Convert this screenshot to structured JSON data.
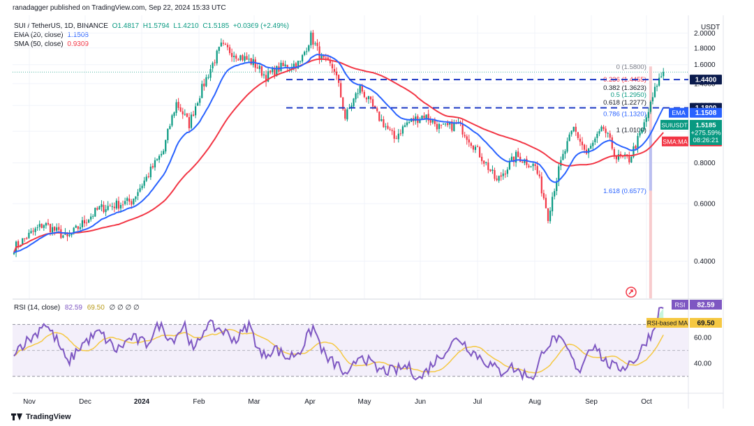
{
  "publisher_line": "ranadagger published on TradingView.com, Sep 22, 2024 15:33 UTC",
  "symbol_line": {
    "name": "SUI / TetherUS, 1D, BINANCE",
    "open": "O1.4817",
    "high": "H1.5794",
    "low": "L1.4210",
    "close": "C1.5185",
    "change": "+0.0369 (+2.49%)"
  },
  "ema_legend": {
    "label": "EMA (20, close)",
    "value": "1.1508"
  },
  "sma_legend": {
    "label": "SMA (50, close)",
    "value": "0.9309"
  },
  "rsi_legend": {
    "label": "RSI (14, close)",
    "value": "82.59",
    "ma_value": "69.50",
    "extras": "∅ ∅ ∅ ∅"
  },
  "currency": "USDT",
  "footer": "TradingView",
  "colors": {
    "up": "#089981",
    "down": "#f23645",
    "ema": "#2962ff",
    "sma": "#f23645",
    "rsi": "#7e57c2",
    "rsi_ma": "#f5c842",
    "levels": "#1a37c4"
  },
  "chart_data": {
    "type": "candlestick",
    "price_axis": {
      "ticks": [
        "2.0000",
        "1.8000",
        "1.6000",
        "1.4000",
        "1.2000",
        "1.0000",
        "0.8000",
        "0.6000",
        "0.4000"
      ],
      "range": [
        0.3,
        2.2
      ]
    },
    "time_axis": {
      "labels": [
        "Nov",
        "Dec",
        "2024",
        "Feb",
        "Mar",
        "Apr",
        "May",
        "Jun",
        "Jul",
        "Aug",
        "Sep",
        "Oct"
      ]
    },
    "keypoints": [
      {
        "d": 0,
        "p": 0.44
      },
      {
        "d": 14,
        "p": 0.52
      },
      {
        "d": 25,
        "p": 0.47
      },
      {
        "d": 40,
        "p": 0.58
      },
      {
        "d": 55,
        "p": 0.61
      },
      {
        "d": 62,
        "p": 0.72
      },
      {
        "d": 70,
        "p": 0.87
      },
      {
        "d": 76,
        "p": 1.22
      },
      {
        "d": 82,
        "p": 1.05
      },
      {
        "d": 90,
        "p": 1.45
      },
      {
        "d": 97,
        "p": 1.82
      },
      {
        "d": 104,
        "p": 1.72
      },
      {
        "d": 112,
        "p": 1.62
      },
      {
        "d": 118,
        "p": 1.47
      },
      {
        "d": 125,
        "p": 1.57
      },
      {
        "d": 134,
        "p": 1.62
      },
      {
        "d": 139,
        "p": 1.95
      },
      {
        "d": 144,
        "p": 1.66
      },
      {
        "d": 150,
        "p": 1.55
      },
      {
        "d": 155,
        "p": 1.1
      },
      {
        "d": 162,
        "p": 1.36
      },
      {
        "d": 170,
        "p": 1.12
      },
      {
        "d": 178,
        "p": 0.95
      },
      {
        "d": 184,
        "p": 1.06
      },
      {
        "d": 192,
        "p": 1.12
      },
      {
        "d": 200,
        "p": 1.02
      },
      {
        "d": 208,
        "p": 1.05
      },
      {
        "d": 218,
        "p": 0.85
      },
      {
        "d": 226,
        "p": 0.7
      },
      {
        "d": 235,
        "p": 0.84
      },
      {
        "d": 244,
        "p": 0.78
      },
      {
        "d": 250,
        "p": 0.55
      },
      {
        "d": 256,
        "p": 0.8
      },
      {
        "d": 262,
        "p": 1.02
      },
      {
        "d": 268,
        "p": 0.85
      },
      {
        "d": 276,
        "p": 1.02
      },
      {
        "d": 282,
        "p": 0.83
      },
      {
        "d": 288,
        "p": 0.82
      },
      {
        "d": 294,
        "p": 1.0
      },
      {
        "d": 298,
        "p": 1.2
      },
      {
        "d": 301,
        "p": 1.4
      },
      {
        "d": 304,
        "p": 1.5185
      }
    ],
    "ema20": {
      "name": "EMA",
      "last": "1.1508"
    },
    "sma50": {
      "name": "SMA:MA",
      "last": "0.9309"
    },
    "levels": [
      {
        "name": "resistance",
        "value": 1.44,
        "label": "1.4400"
      },
      {
        "name": "support",
        "value": 1.18,
        "label": "1.1800"
      }
    ],
    "fib_levels": [
      {
        "ratio": "0",
        "value": 1.58,
        "label": "0 (1.5800)"
      },
      {
        "ratio": "0.236",
        "value": 1.4455,
        "label": "0.236 (1.4455)"
      },
      {
        "ratio": "0.382",
        "value": 1.3623,
        "label": "0.382 (1.3623)"
      },
      {
        "ratio": "0.5",
        "value": 1.295,
        "label": "0.5 (1.2950)"
      },
      {
        "ratio": "0.618",
        "value": 1.2277,
        "label": "0.618 (1.2277)"
      },
      {
        "ratio": "0.786",
        "value": 1.132,
        "label": "0.786 (1.1320)"
      },
      {
        "ratio": "1",
        "value": 1.01,
        "label": "1 (1.0100)"
      },
      {
        "ratio": "1.618",
        "value": 0.6577,
        "label": "1.618 (0.6577)"
      }
    ],
    "price_badge": {
      "symbol": "SUIUSDT",
      "price": "1.5185",
      "change": "+275.59%",
      "countdown": "08:26:21"
    },
    "rsi": {
      "axis_ticks": [
        "60.00",
        "40.00"
      ],
      "bands": [
        70,
        50,
        30
      ],
      "last": "82.59",
      "ma_last": "69.50",
      "label": "RSI",
      "ma_label": "RSI-based MA",
      "keypoints": [
        {
          "d": 0,
          "v": 50
        },
        {
          "d": 10,
          "v": 62
        },
        {
          "d": 14,
          "v": 72
        },
        {
          "d": 20,
          "v": 58
        },
        {
          "d": 25,
          "v": 40
        },
        {
          "d": 32,
          "v": 55
        },
        {
          "d": 40,
          "v": 64
        },
        {
          "d": 48,
          "v": 50
        },
        {
          "d": 55,
          "v": 60
        },
        {
          "d": 62,
          "v": 55
        },
        {
          "d": 68,
          "v": 70
        },
        {
          "d": 74,
          "v": 58
        },
        {
          "d": 80,
          "v": 70
        },
        {
          "d": 84,
          "v": 48
        },
        {
          "d": 90,
          "v": 70
        },
        {
          "d": 97,
          "v": 66
        },
        {
          "d": 104,
          "v": 58
        },
        {
          "d": 110,
          "v": 70
        },
        {
          "d": 116,
          "v": 45
        },
        {
          "d": 122,
          "v": 52
        },
        {
          "d": 128,
          "v": 44
        },
        {
          "d": 134,
          "v": 50
        },
        {
          "d": 140,
          "v": 68
        },
        {
          "d": 146,
          "v": 44
        },
        {
          "d": 152,
          "v": 38
        },
        {
          "d": 156,
          "v": 28
        },
        {
          "d": 162,
          "v": 48
        },
        {
          "d": 170,
          "v": 35
        },
        {
          "d": 178,
          "v": 34
        },
        {
          "d": 184,
          "v": 38
        },
        {
          "d": 190,
          "v": 28
        },
        {
          "d": 196,
          "v": 40
        },
        {
          "d": 202,
          "v": 50
        },
        {
          "d": 208,
          "v": 60
        },
        {
          "d": 214,
          "v": 50
        },
        {
          "d": 222,
          "v": 40
        },
        {
          "d": 228,
          "v": 33
        },
        {
          "d": 232,
          "v": 38
        },
        {
          "d": 238,
          "v": 32
        },
        {
          "d": 244,
          "v": 30
        },
        {
          "d": 248,
          "v": 52
        },
        {
          "d": 254,
          "v": 60
        },
        {
          "d": 260,
          "v": 48
        },
        {
          "d": 264,
          "v": 32
        },
        {
          "d": 268,
          "v": 48
        },
        {
          "d": 272,
          "v": 56
        },
        {
          "d": 276,
          "v": 42
        },
        {
          "d": 282,
          "v": 36
        },
        {
          "d": 286,
          "v": 38
        },
        {
          "d": 292,
          "v": 45
        },
        {
          "d": 296,
          "v": 58
        },
        {
          "d": 299,
          "v": 64
        },
        {
          "d": 302,
          "v": 80
        },
        {
          "d": 304,
          "v": 82.59
        }
      ]
    }
  }
}
